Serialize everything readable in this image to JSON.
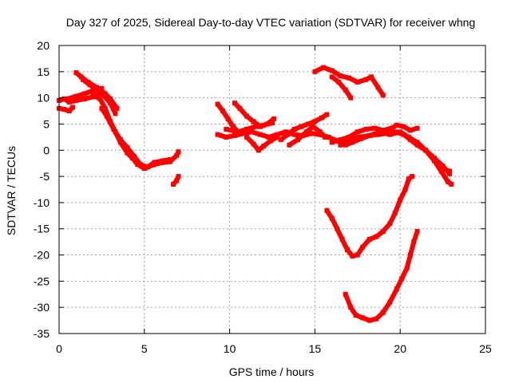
{
  "chart_data": {
    "type": "scatter",
    "title": "Day 327 of 2025, Sidereal Day-to-day VTEC variation (SDTVAR) for receiver whng",
    "xlabel": "GPS time / hours",
    "ylabel": "SDTVAR / TECUs",
    "xlim": [
      0,
      25
    ],
    "ylim": [
      -35,
      20
    ],
    "xticks": [
      0,
      5,
      10,
      15,
      20,
      25
    ],
    "yticks": [
      -35,
      -30,
      -25,
      -20,
      -15,
      -10,
      -5,
      0,
      5,
      10,
      15,
      20
    ],
    "grid": true,
    "color": "#ff0000",
    "series": [
      {
        "points": [
          [
            0.0,
            9.5
          ],
          [
            0.3,
            9.8
          ],
          [
            0.6,
            9.2
          ],
          [
            1.0,
            9.5
          ],
          [
            1.5,
            9.8
          ],
          [
            2.0,
            10.2
          ],
          [
            2.4,
            11.0
          ],
          [
            2.8,
            10.0
          ]
        ]
      },
      {
        "points": [
          [
            0.0,
            8.0
          ],
          [
            0.3,
            7.8
          ],
          [
            0.6,
            7.5
          ],
          [
            0.8,
            8.2
          ]
        ]
      },
      {
        "points": [
          [
            0.5,
            9.8
          ],
          [
            1.0,
            10.3
          ],
          [
            1.5,
            10.8
          ],
          [
            2.0,
            11.4
          ],
          [
            2.5,
            11.8
          ]
        ]
      },
      {
        "points": [
          [
            1.0,
            14.8
          ],
          [
            1.3,
            14.0
          ],
          [
            1.7,
            13.0
          ],
          [
            2.2,
            12.0
          ],
          [
            2.7,
            10.8
          ],
          [
            3.0,
            9.8
          ],
          [
            3.4,
            8.0
          ]
        ]
      },
      {
        "points": [
          [
            1.4,
            13.5
          ],
          [
            1.8,
            12.5
          ],
          [
            2.2,
            11.5
          ],
          [
            2.6,
            10.5
          ],
          [
            3.0,
            9.0
          ],
          [
            3.3,
            7.0
          ]
        ]
      },
      {
        "points": [
          [
            2.0,
            10.5
          ],
          [
            2.4,
            9.8
          ],
          [
            2.7,
            8.0
          ],
          [
            3.0,
            5.5
          ],
          [
            3.3,
            3.5
          ],
          [
            3.6,
            1.5
          ],
          [
            4.0,
            -0.5
          ],
          [
            4.3,
            -1.5
          ],
          [
            4.6,
            -2.7
          ],
          [
            5.0,
            -3.5
          ],
          [
            5.5,
            -2.8
          ],
          [
            6.0,
            -2.4
          ],
          [
            6.5,
            -2.2
          ],
          [
            6.9,
            -1.0
          ],
          [
            7.0,
            -0.3
          ]
        ]
      },
      {
        "points": [
          [
            2.5,
            8.0
          ],
          [
            2.8,
            6.5
          ],
          [
            3.2,
            4.0
          ],
          [
            3.6,
            2.0
          ],
          [
            4.0,
            0.5
          ],
          [
            4.4,
            -1.2
          ],
          [
            4.8,
            -2.8
          ],
          [
            5.2,
            -3.2
          ],
          [
            5.6,
            -2.3
          ],
          [
            6.1,
            -2.0
          ],
          [
            6.5,
            -1.8
          ]
        ]
      },
      {
        "points": [
          [
            6.7,
            -6.5
          ],
          [
            6.9,
            -5.8
          ],
          [
            7.0,
            -5.0
          ]
        ]
      },
      {
        "points": [
          [
            9.3,
            8.8
          ],
          [
            9.6,
            7.5
          ],
          [
            9.9,
            6.0
          ],
          [
            10.2,
            4.5
          ],
          [
            10.5,
            3.5
          ]
        ]
      },
      {
        "points": [
          [
            9.3,
            3.0
          ],
          [
            9.8,
            2.5
          ],
          [
            10.3,
            2.8
          ],
          [
            10.8,
            3.2
          ],
          [
            11.3,
            3.5
          ],
          [
            11.8,
            3.0
          ],
          [
            12.3,
            2.5
          ],
          [
            12.8,
            3.0
          ],
          [
            13.3,
            3.5
          ],
          [
            13.8,
            3.0
          ],
          [
            14.3,
            2.8
          ],
          [
            14.8,
            3.2
          ],
          [
            15.3,
            3.0
          ],
          [
            15.8,
            2.5
          ],
          [
            16.3,
            1.8
          ],
          [
            16.8,
            1.0
          ],
          [
            17.2,
            1.5
          ],
          [
            17.7,
            2.2
          ],
          [
            18.2,
            2.8
          ],
          [
            18.7,
            3.0
          ],
          [
            19.2,
            3.2
          ],
          [
            19.7,
            3.5
          ],
          [
            20.2,
            3.0
          ],
          [
            20.6,
            2.0
          ],
          [
            21.0,
            1.0
          ],
          [
            21.5,
            0.0
          ],
          [
            22.0,
            -2.0
          ],
          [
            22.4,
            -4.0
          ],
          [
            22.8,
            -6.0
          ],
          [
            23.0,
            -6.5
          ]
        ]
      },
      {
        "points": [
          [
            10.3,
            9.0
          ],
          [
            10.6,
            8.0
          ],
          [
            11.0,
            6.5
          ],
          [
            11.4,
            5.5
          ],
          [
            11.8,
            4.5
          ],
          [
            12.2,
            5.0
          ],
          [
            12.6,
            6.0
          ]
        ]
      },
      {
        "points": [
          [
            9.8,
            4.0
          ],
          [
            10.5,
            3.5
          ],
          [
            11.0,
            4.0
          ],
          [
            11.5,
            4.5
          ],
          [
            12.0,
            4.8
          ],
          [
            12.5,
            5.2
          ]
        ]
      },
      {
        "points": [
          [
            11.0,
            2.5
          ],
          [
            11.4,
            1.2
          ],
          [
            11.7,
            0.0
          ],
          [
            12.0,
            0.8
          ],
          [
            12.4,
            1.8
          ],
          [
            12.8,
            2.5
          ]
        ]
      },
      {
        "points": [
          [
            13.0,
            2.0
          ],
          [
            13.4,
            3.0
          ],
          [
            13.8,
            4.0
          ],
          [
            14.2,
            4.5
          ],
          [
            14.6,
            5.0
          ],
          [
            15.0,
            5.5
          ],
          [
            15.4,
            6.2
          ],
          [
            15.7,
            6.8
          ]
        ]
      },
      {
        "points": [
          [
            13.5,
            1.0
          ],
          [
            14.0,
            2.0
          ],
          [
            14.5,
            3.5
          ],
          [
            14.9,
            4.5
          ],
          [
            15.3,
            3.5
          ],
          [
            15.6,
            2.5
          ]
        ]
      },
      {
        "points": [
          [
            16.0,
            1.5
          ],
          [
            16.5,
            2.0
          ],
          [
            17.0,
            2.5
          ],
          [
            17.5,
            3.5
          ],
          [
            18.0,
            4.0
          ],
          [
            18.5,
            4.2
          ],
          [
            19.0,
            3.8
          ],
          [
            19.5,
            4.2
          ],
          [
            19.8,
            4.8
          ],
          [
            20.2,
            4.5
          ],
          [
            20.6,
            3.8
          ],
          [
            21.0,
            4.2
          ]
        ]
      },
      {
        "points": [
          [
            16.5,
            1.0
          ],
          [
            17.0,
            1.8
          ],
          [
            17.6,
            2.5
          ],
          [
            18.2,
            2.8
          ],
          [
            18.8,
            3.5
          ],
          [
            19.4,
            3.0
          ],
          [
            20.0,
            3.5
          ],
          [
            20.5,
            2.5
          ],
          [
            21.0,
            1.5
          ],
          [
            21.5,
            0.0
          ],
          [
            22.0,
            -1.5
          ],
          [
            22.5,
            -3.0
          ],
          [
            22.9,
            -4.5
          ]
        ]
      },
      {
        "points": [
          [
            22.5,
            -3.5
          ],
          [
            22.9,
            -4.0
          ]
        ]
      },
      {
        "points": [
          [
            15.0,
            15.0
          ],
          [
            15.5,
            15.8
          ],
          [
            16.0,
            15.2
          ],
          [
            16.5,
            14.2
          ],
          [
            17.0,
            13.8
          ],
          [
            17.5,
            13.0
          ],
          [
            18.0,
            13.5
          ],
          [
            18.3,
            14.0
          ],
          [
            18.7,
            12.0
          ],
          [
            19.0,
            10.5
          ]
        ]
      },
      {
        "points": [
          [
            16.0,
            14.0
          ],
          [
            16.4,
            13.0
          ],
          [
            16.8,
            11.5
          ],
          [
            17.1,
            10.0
          ]
        ]
      },
      {
        "points": [
          [
            15.7,
            -11.5
          ],
          [
            16.0,
            -13.0
          ],
          [
            16.3,
            -15.0
          ],
          [
            16.6,
            -17.0
          ],
          [
            16.9,
            -19.0
          ],
          [
            17.2,
            -20.2
          ],
          [
            17.5,
            -20.0
          ],
          [
            17.8,
            -18.5
          ],
          [
            18.2,
            -17.0
          ],
          [
            18.6,
            -16.5
          ],
          [
            19.0,
            -15.5
          ],
          [
            19.4,
            -14.0
          ],
          [
            19.7,
            -12.0
          ],
          [
            20.0,
            -9.5
          ],
          [
            20.3,
            -7.5
          ],
          [
            20.5,
            -5.5
          ],
          [
            20.7,
            -5.0
          ]
        ]
      },
      {
        "points": [
          [
            16.8,
            -27.5
          ],
          [
            17.1,
            -30.0
          ],
          [
            17.4,
            -31.5
          ],
          [
            17.8,
            -32.0
          ],
          [
            18.2,
            -32.5
          ],
          [
            18.6,
            -32.2
          ],
          [
            19.0,
            -31.0
          ],
          [
            19.4,
            -29.0
          ],
          [
            19.8,
            -26.5
          ],
          [
            20.1,
            -24.5
          ],
          [
            20.4,
            -22.5
          ],
          [
            20.6,
            -20.0
          ],
          [
            20.8,
            -17.5
          ],
          [
            21.0,
            -15.5
          ]
        ]
      }
    ]
  }
}
